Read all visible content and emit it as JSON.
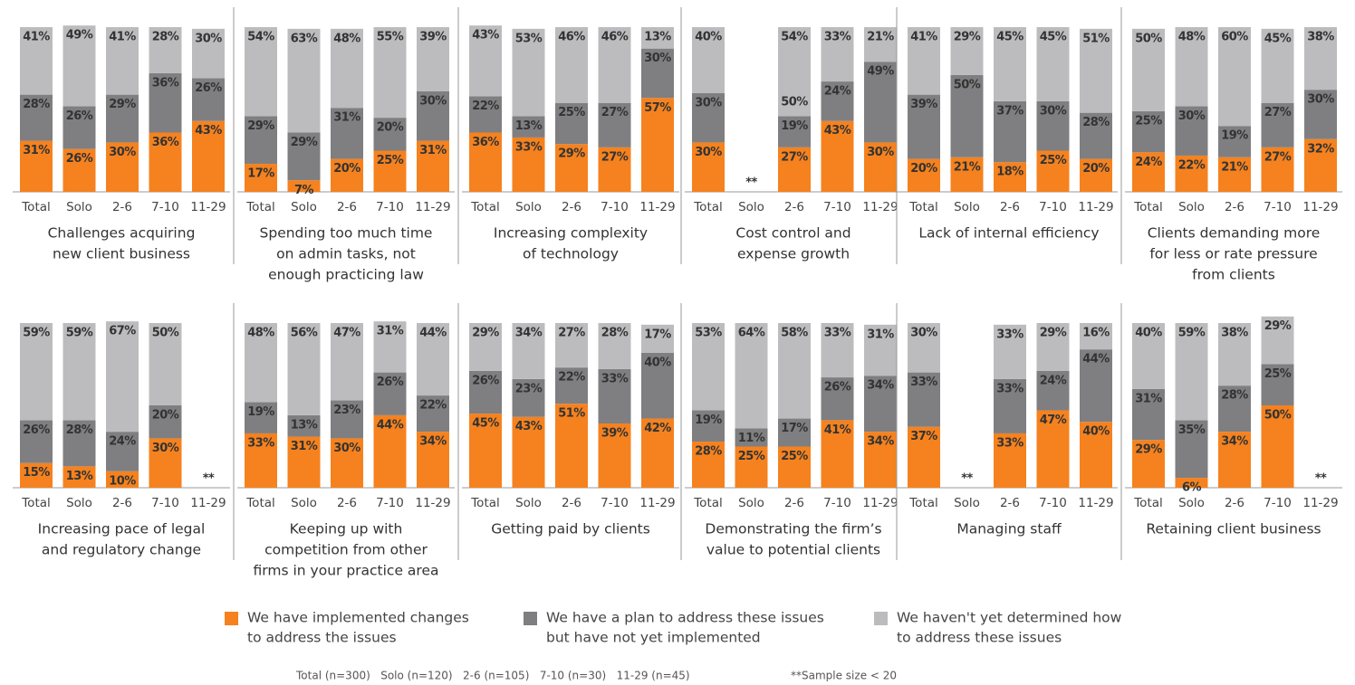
{
  "chart_data": [
    {
      "type": "stacked-bar",
      "title": [
        "Challenges acquiring",
        "new client business"
      ],
      "categories": [
        "Total",
        "Solo",
        "2-6",
        "7-10",
        "11-29"
      ],
      "ylim": [
        0,
        100
      ],
      "series": [
        {
          "name": "We have implemented changes to address the issues",
          "color": "#f5821f",
          "values": [
            31,
            26,
            30,
            36,
            43
          ],
          "value_labels": [
            "31%",
            "26%",
            "30%",
            "36%",
            "43%"
          ]
        },
        {
          "name": "We have a plan to address these issues but have not yet implemented",
          "color": "#7f7f81",
          "values": [
            28,
            26,
            29,
            36,
            26
          ],
          "value_labels": [
            "28%",
            "26%",
            "29%",
            "36%",
            "26%"
          ]
        },
        {
          "name": "We haven't yet determined how to address these issues",
          "color": "#bcbcbe",
          "values": [
            41,
            49,
            41,
            28,
            30
          ],
          "value_labels": [
            "41%",
            "49%",
            "41%",
            "28%",
            "30%"
          ]
        }
      ]
    },
    {
      "type": "stacked-bar",
      "title": [
        "Spending too much time",
        "on admin tasks, not",
        "enough practicing law"
      ],
      "categories": [
        "Total",
        "Solo",
        "2-6",
        "7-10",
        "11-29"
      ],
      "ylim": [
        0,
        100
      ],
      "series": [
        {
          "name": "We have implemented changes to address the issues",
          "color": "#f5821f",
          "values": [
            17,
            7,
            20,
            25,
            31
          ],
          "value_labels": [
            "17%",
            "7%",
            "20%",
            "25%",
            "31%"
          ]
        },
        {
          "name": "We have a plan to address these issues but have not yet implemented",
          "color": "#7f7f81",
          "values": [
            29,
            29,
            31,
            20,
            30
          ],
          "value_labels": [
            "29%",
            "29%",
            "31%",
            "20%",
            "30%"
          ]
        },
        {
          "name": "We haven't yet determined how to address these issues",
          "color": "#bcbcbe",
          "values": [
            54,
            63,
            48,
            55,
            39
          ],
          "value_labels": [
            "54%",
            "63%",
            "48%",
            "55%",
            "39%"
          ]
        }
      ]
    },
    {
      "type": "stacked-bar",
      "title": [
        "Increasing complexity",
        "of technology"
      ],
      "categories": [
        "Total",
        "Solo",
        "2-6",
        "7-10",
        "11-29"
      ],
      "ylim": [
        0,
        100
      ],
      "series": [
        {
          "name": "We have implemented changes to address the issues",
          "color": "#f5821f",
          "values": [
            36,
            33,
            29,
            27,
            57
          ],
          "value_labels": [
            "36%",
            "33%",
            "29%",
            "27%",
            "57%"
          ]
        },
        {
          "name": "We have a plan to address these issues but have not yet implemented",
          "color": "#7f7f81",
          "values": [
            22,
            13,
            25,
            27,
            30
          ],
          "value_labels": [
            "22%",
            "13%",
            "25%",
            "27%",
            "30%"
          ]
        },
        {
          "name": "We haven't yet determined how to address these issues",
          "color": "#bcbcbe",
          "values": [
            43,
            53,
            46,
            46,
            13
          ],
          "value_labels": [
            "43%",
            "53%",
            "46%",
            "46%",
            "13%"
          ]
        }
      ]
    },
    {
      "type": "stacked-bar",
      "title": [
        "Cost control and",
        "expense growth"
      ],
      "categories": [
        "Total",
        "Solo",
        "2-6",
        "7-10",
        "11-29"
      ],
      "ylim": [
        0,
        100
      ],
      "annotations": [
        {
          "category": 2,
          "text": "50%"
        }
      ],
      "series": [
        {
          "name": "We have implemented changes to address the issues",
          "color": "#f5821f",
          "values": [
            30,
            null,
            27,
            43,
            30
          ],
          "value_labels": [
            "30%",
            "**",
            "27%",
            "43%",
            "30%"
          ]
        },
        {
          "name": "We have a plan to address these issues but have not yet implemented",
          "color": "#7f7f81",
          "values": [
            30,
            null,
            19,
            24,
            49
          ],
          "value_labels": [
            "30%",
            null,
            "19%",
            "24%",
            "49%"
          ]
        },
        {
          "name": "We haven't yet determined how to address these issues",
          "color": "#bcbcbe",
          "values": [
            40,
            null,
            54,
            33,
            21
          ],
          "value_labels": [
            "40%",
            null,
            "54%",
            "33%",
            "21%"
          ]
        }
      ]
    },
    {
      "type": "stacked-bar",
      "title": [
        "Lack of internal efficiency"
      ],
      "categories": [
        "Total",
        "Solo",
        "2-6",
        "7-10",
        "11-29"
      ],
      "ylim": [
        0,
        100
      ],
      "series": [
        {
          "name": "We have implemented changes to address the issues",
          "color": "#f5821f",
          "values": [
            20,
            21,
            18,
            25,
            20
          ],
          "value_labels": [
            "20%",
            "21%",
            "18%",
            "25%",
            "20%"
          ]
        },
        {
          "name": "We have a plan to address these issues but have not yet implemented",
          "color": "#7f7f81",
          "values": [
            39,
            50,
            37,
            30,
            28
          ],
          "value_labels": [
            "39%",
            "50%",
            "37%",
            "30%",
            "28%"
          ]
        },
        {
          "name": "We haven't yet determined how to address these issues",
          "color": "#bcbcbe",
          "values": [
            41,
            29,
            45,
            45,
            51
          ],
          "value_labels": [
            "41%",
            "29%",
            "45%",
            "45%",
            "51%"
          ]
        }
      ]
    },
    {
      "type": "stacked-bar",
      "title": [
        "Clients demanding more",
        "for less or rate pressure",
        "from clients"
      ],
      "categories": [
        "Total",
        "Solo",
        "2-6",
        "7-10",
        "11-29"
      ],
      "ylim": [
        0,
        100
      ],
      "series": [
        {
          "name": "We have implemented changes to address the issues",
          "color": "#f5821f",
          "values": [
            24,
            22,
            21,
            27,
            32
          ],
          "value_labels": [
            "24%",
            "22%",
            "21%",
            "27%",
            "32%"
          ]
        },
        {
          "name": "We have a plan to address these issues but have not yet implemented",
          "color": "#7f7f81",
          "values": [
            25,
            30,
            19,
            27,
            30
          ],
          "value_labels": [
            "25%",
            "30%",
            "19%",
            "27%",
            "30%"
          ]
        },
        {
          "name": "We haven't yet determined how to address these issues",
          "color": "#bcbcbe",
          "values": [
            50,
            48,
            60,
            45,
            38
          ],
          "value_labels": [
            "50%",
            "48%",
            "60%",
            "45%",
            "38%"
          ]
        }
      ]
    },
    {
      "type": "stacked-bar",
      "title": [
        "Increasing pace of legal",
        "and regulatory change"
      ],
      "categories": [
        "Total",
        "Solo",
        "2-6",
        "7-10",
        "11-29"
      ],
      "ylim": [
        0,
        100
      ],
      "series": [
        {
          "name": "We have implemented changes to address the issues",
          "color": "#f5821f",
          "values": [
            15,
            13,
            10,
            30,
            null
          ],
          "value_labels": [
            "15%",
            "13%",
            "10%",
            "30%",
            "**"
          ]
        },
        {
          "name": "We have a plan to address these issues but have not yet implemented",
          "color": "#7f7f81",
          "values": [
            26,
            28,
            24,
            20,
            null
          ],
          "value_labels": [
            "26%",
            "28%",
            "24%",
            "20%",
            null
          ]
        },
        {
          "name": "We haven't yet determined how to address these issues",
          "color": "#bcbcbe",
          "values": [
            59,
            59,
            67,
            50,
            null
          ],
          "value_labels": [
            "59%",
            "59%",
            "67%",
            "50%",
            null
          ]
        }
      ]
    },
    {
      "type": "stacked-bar",
      "title": [
        "Keeping up with",
        "competition from other",
        "firms in your practice area"
      ],
      "categories": [
        "Total",
        "Solo",
        "2-6",
        "7-10",
        "11-29"
      ],
      "ylim": [
        0,
        100
      ],
      "series": [
        {
          "name": "We have implemented changes to address the issues",
          "color": "#f5821f",
          "values": [
            33,
            31,
            30,
            44,
            34
          ],
          "value_labels": [
            "33%",
            "31%",
            "30%",
            "44%",
            "34%"
          ]
        },
        {
          "name": "We have a plan to address these issues but have not yet implemented",
          "color": "#7f7f81",
          "values": [
            19,
            13,
            23,
            26,
            22
          ],
          "value_labels": [
            "19%",
            "13%",
            "23%",
            "26%",
            "22%"
          ]
        },
        {
          "name": "We haven't yet determined how to address these issues",
          "color": "#bcbcbe",
          "values": [
            48,
            56,
            47,
            31,
            44
          ],
          "value_labels": [
            "48%",
            "56%",
            "47%",
            "31%",
            "44%"
          ]
        }
      ]
    },
    {
      "type": "stacked-bar",
      "title": [
        "Getting paid by clients"
      ],
      "categories": [
        "Total",
        "Solo",
        "2-6",
        "7-10",
        "11-29"
      ],
      "ylim": [
        0,
        100
      ],
      "series": [
        {
          "name": "We have implemented changes to address the issues",
          "color": "#f5821f",
          "values": [
            45,
            43,
            51,
            39,
            42
          ],
          "value_labels": [
            "45%",
            "43%",
            "51%",
            "39%",
            "42%"
          ]
        },
        {
          "name": "We have a plan to address these issues but have not yet implemented",
          "color": "#7f7f81",
          "values": [
            26,
            23,
            22,
            33,
            40
          ],
          "value_labels": [
            "26%",
            "23%",
            "22%",
            "33%",
            "40%"
          ]
        },
        {
          "name": "We haven't yet determined how to address these issues",
          "color": "#bcbcbe",
          "values": [
            29,
            34,
            27,
            28,
            17
          ],
          "value_labels": [
            "29%",
            "34%",
            "27%",
            "28%",
            "17%"
          ]
        }
      ]
    },
    {
      "type": "stacked-bar",
      "title": [
        "Demonstrating the firm’s",
        "value to potential clients"
      ],
      "categories": [
        "Total",
        "Solo",
        "2-6",
        "7-10",
        "11-29"
      ],
      "ylim": [
        0,
        100
      ],
      "series": [
        {
          "name": "We have implemented changes to address the issues",
          "color": "#f5821f",
          "values": [
            28,
            25,
            25,
            41,
            34
          ],
          "value_labels": [
            "28%",
            "25%",
            "25%",
            "41%",
            "34%"
          ]
        },
        {
          "name": "We have a plan to address these issues but have not yet implemented",
          "color": "#7f7f81",
          "values": [
            19,
            11,
            17,
            26,
            34
          ],
          "value_labels": [
            "19%",
            "11%",
            "17%",
            "26%",
            "34%"
          ]
        },
        {
          "name": "We haven't yet determined how to address these issues",
          "color": "#bcbcbe",
          "values": [
            53,
            64,
            58,
            33,
            31
          ],
          "value_labels": [
            "53%",
            "64%",
            "58%",
            "33%",
            "31%"
          ]
        }
      ]
    },
    {
      "type": "stacked-bar",
      "title": [
        "Managing staff"
      ],
      "categories": [
        "Total",
        "Solo",
        "2-6",
        "7-10",
        "11-29"
      ],
      "ylim": [
        0,
        100
      ],
      "series": [
        {
          "name": "We have implemented changes to address the issues",
          "color": "#f5821f",
          "values": [
            37,
            null,
            33,
            47,
            40
          ],
          "value_labels": [
            "37%",
            "**",
            "33%",
            "47%",
            "40%"
          ]
        },
        {
          "name": "We have a plan to address these issues but have not yet implemented",
          "color": "#7f7f81",
          "values": [
            33,
            null,
            33,
            24,
            44
          ],
          "value_labels": [
            "33%",
            null,
            "33%",
            "24%",
            "44%"
          ]
        },
        {
          "name": "We haven't yet determined how to address these issues",
          "color": "#bcbcbe",
          "values": [
            30,
            null,
            33,
            29,
            16
          ],
          "value_labels": [
            "30%",
            null,
            "33%",
            "29%",
            "16%"
          ]
        }
      ]
    },
    {
      "type": "stacked-bar",
      "title": [
        "Retaining client business"
      ],
      "categories": [
        "Total",
        "Solo",
        "2-6",
        "7-10",
        "11-29"
      ],
      "ylim": [
        0,
        100
      ],
      "series": [
        {
          "name": "We have implemented changes to address the issues",
          "color": "#f5821f",
          "values": [
            29,
            6,
            34,
            50,
            null
          ],
          "value_labels": [
            "29%",
            "6%",
            "34%",
            "50%",
            "**"
          ]
        },
        {
          "name": "We have a plan to address these issues but have not yet implemented",
          "color": "#7f7f81",
          "values": [
            31,
            35,
            28,
            25,
            null
          ],
          "value_labels": [
            "31%",
            "35%",
            "28%",
            "25%",
            null
          ]
        },
        {
          "name": "We haven't yet determined how to address these issues",
          "color": "#bcbcbe",
          "values": [
            40,
            59,
            38,
            29,
            null
          ],
          "value_labels": [
            "40%",
            "59%",
            "38%",
            "29%",
            null
          ]
        }
      ]
    }
  ],
  "legend": [
    [
      "We have implemented changes",
      "to address the issues"
    ],
    [
      "We have a plan to address these issues",
      "but have not yet implemented"
    ],
    [
      "We haven't yet determined how",
      "to address these issues"
    ]
  ],
  "footnotes": [
    "Total (n=300)   Solo (n=120)   2-6 (n=105)   7-10 (n=30)   11-29 (n=45)",
    "**Sample size < 20"
  ]
}
